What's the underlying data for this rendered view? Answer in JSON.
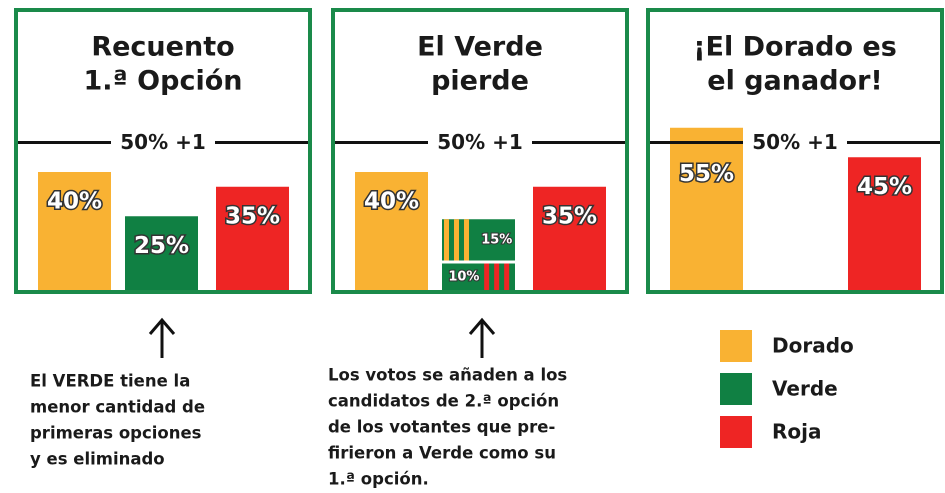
{
  "chart_data": [
    {
      "type": "bar",
      "title_lines": [
        "Recuento",
        "1.ª Opción"
      ],
      "threshold": 50,
      "threshold_label": "50% +1",
      "values": [
        40,
        25,
        35
      ],
      "value_labels": [
        "40%",
        "25%",
        "35%"
      ]
    },
    {
      "type": "transfer",
      "title_lines": [
        "El Verde",
        "pierde"
      ],
      "threshold": 50,
      "threshold_label": "50% +1",
      "values": [
        40,
        null,
        35
      ],
      "value_labels": [
        "40%",
        null,
        "35%"
      ],
      "transfer": [
        {
          "value": 15,
          "label": "15%",
          "stripe_color": "#f9b233"
        },
        {
          "value": 10,
          "label": "10%",
          "stripe_color": "#ee2524"
        }
      ]
    },
    {
      "type": "bar",
      "title_lines": [
        "¡El Dorado es",
        "el ganador!"
      ],
      "threshold": 50,
      "threshold_label": "50% +1",
      "values": [
        55,
        null,
        45
      ],
      "value_labels": [
        "55%",
        null,
        "45%"
      ]
    }
  ],
  "legend": [
    {
      "name": "Dorado",
      "color": "#f9b233"
    },
    {
      "name": "Verde",
      "color": "#108043"
    },
    {
      "name": "Roja",
      "color": "#ee2524"
    }
  ],
  "notes": [
    [
      "El VERDE tiene la",
      "menor cantidad de",
      "primeras opciones",
      "y es eliminado"
    ],
    [
      "Los votos se añaden a los",
      "candidatos de 2.ª opción",
      "de los votantes que pre-",
      "firieron a Verde como su",
      "1.ª opción."
    ]
  ]
}
